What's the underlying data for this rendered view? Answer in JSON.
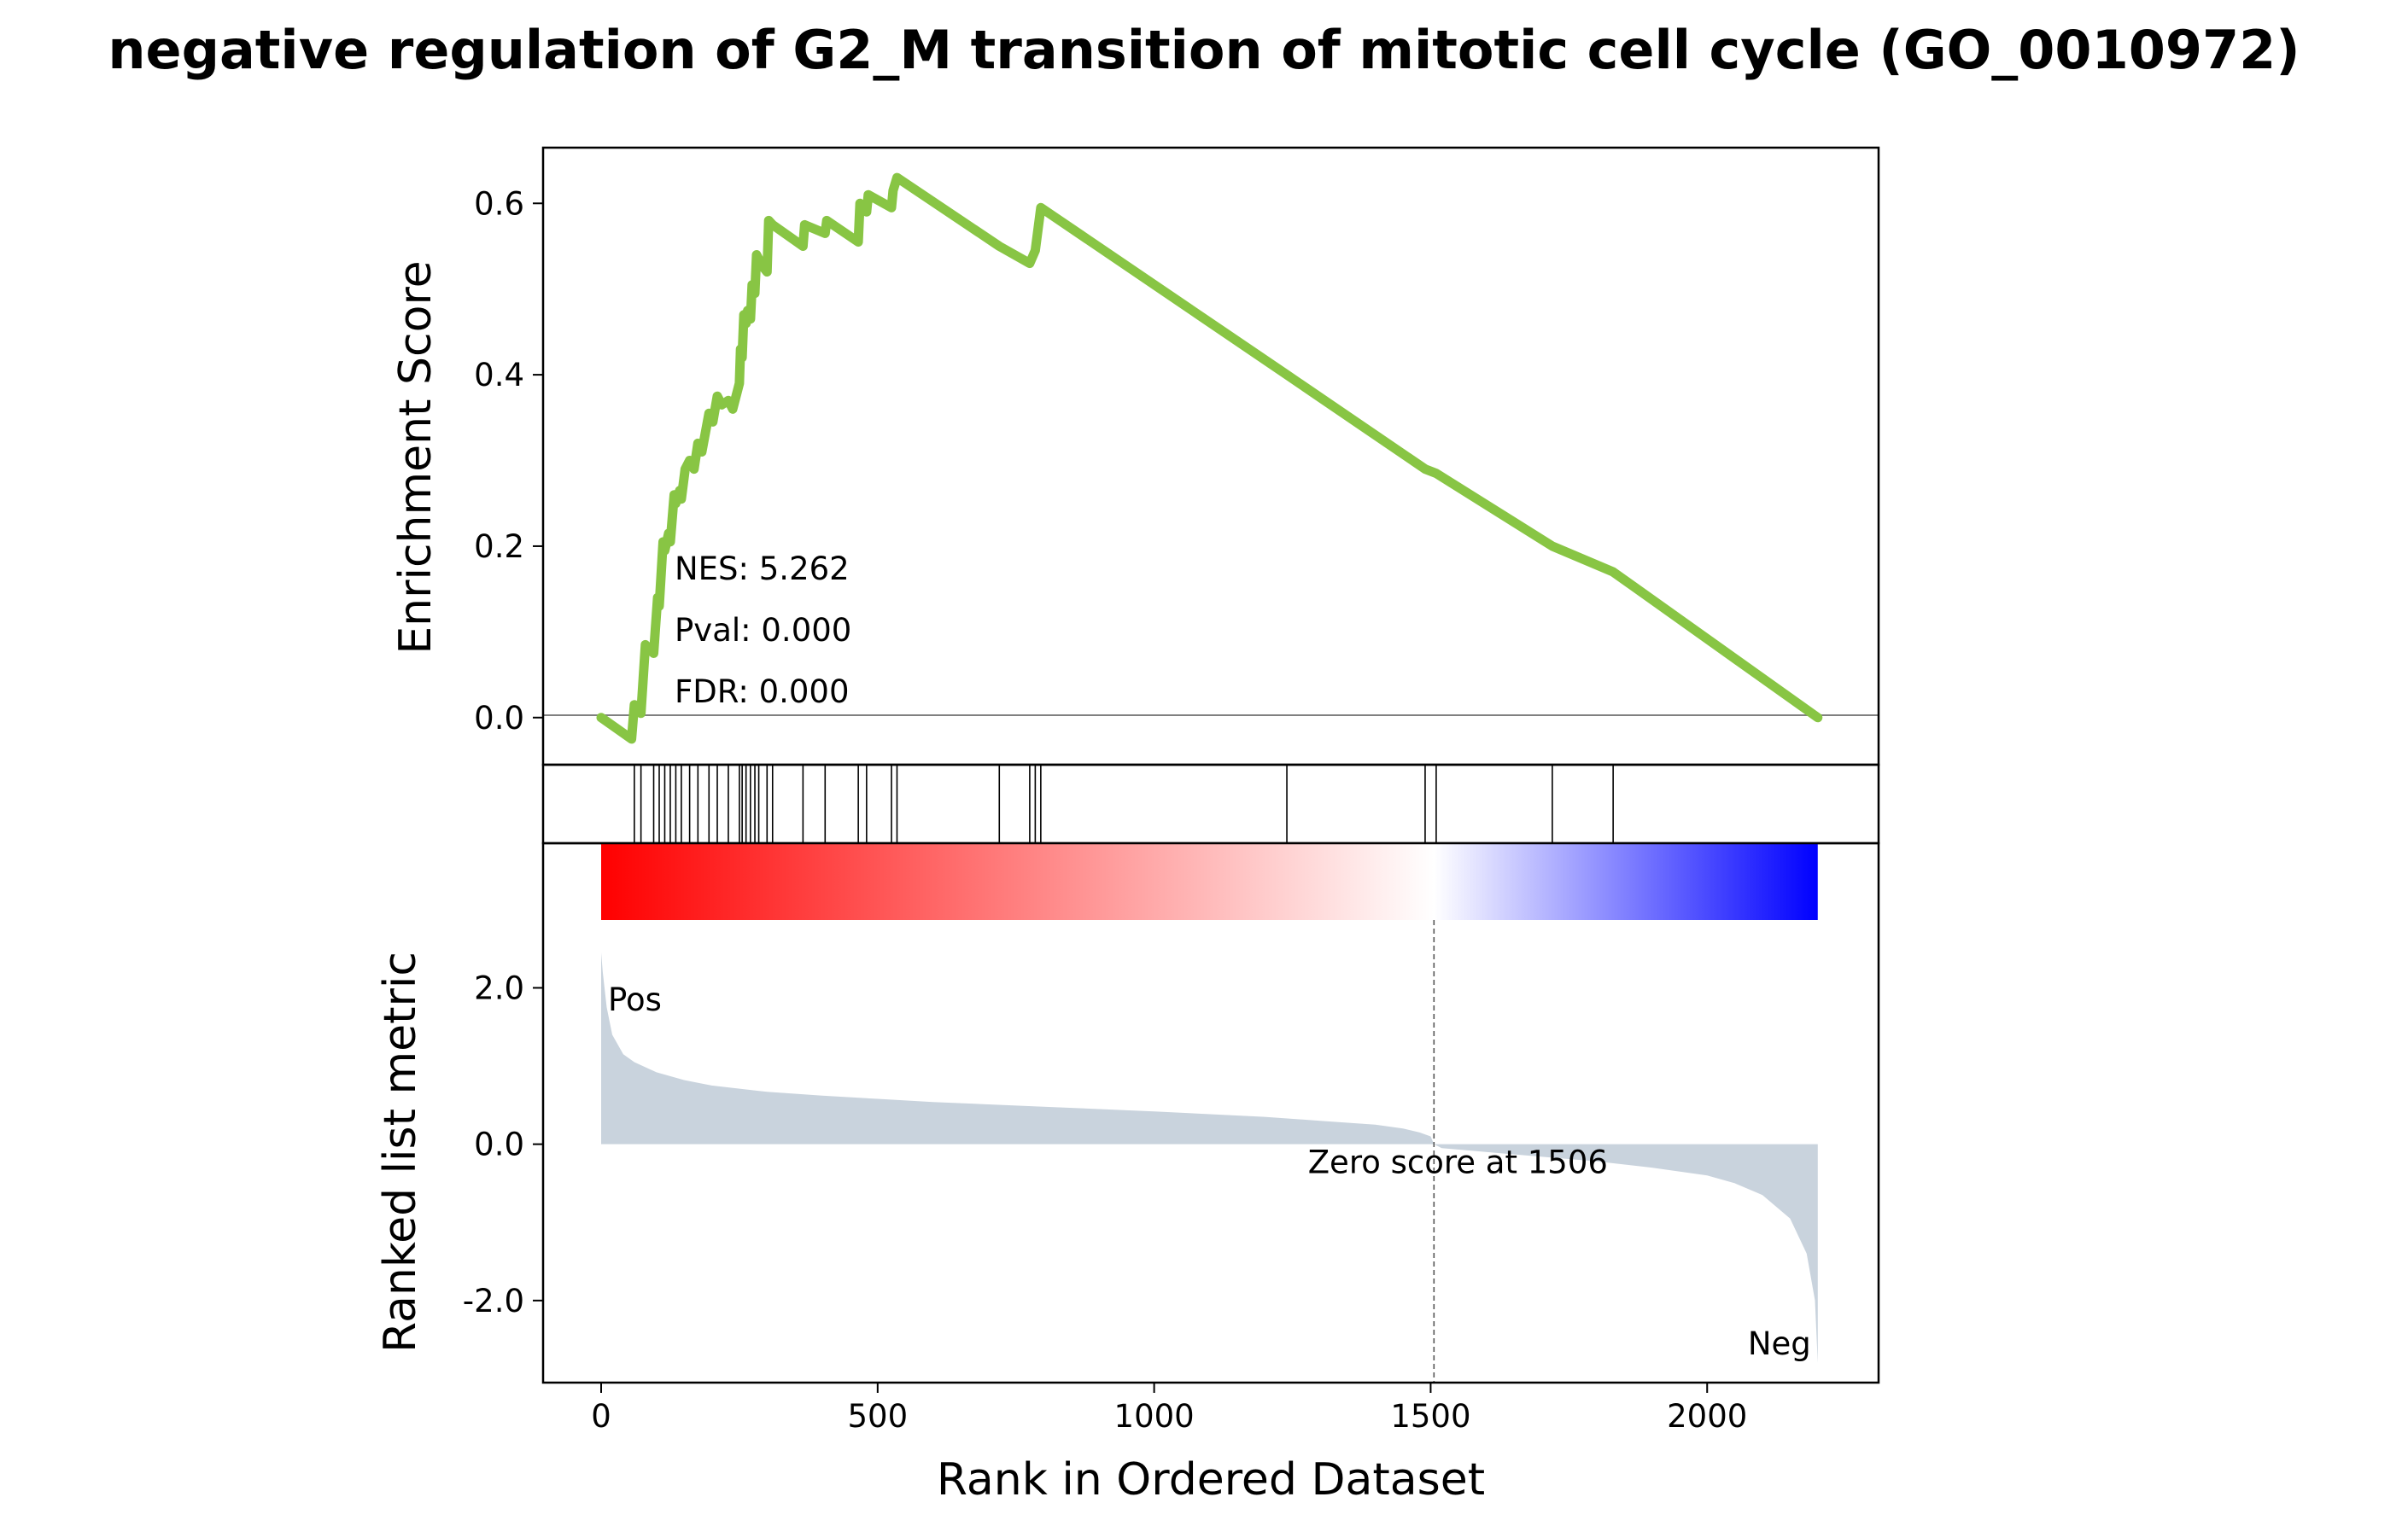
{
  "chart_data": {
    "type": "line",
    "title": "negative regulation of G2_M transition of mitotic cell cycle (GO_0010972)",
    "xlabel": "Rank in Ordered Dataset",
    "xlim": [
      -105,
      2310
    ],
    "x_ticks": [
      {
        "value": 0,
        "label": "0"
      },
      {
        "value": 500,
        "label": "500"
      },
      {
        "value": 1000,
        "label": "1000"
      },
      {
        "value": 1500,
        "label": "1500"
      },
      {
        "value": 2000,
        "label": "2000"
      }
    ],
    "enrichment": {
      "ylabel": "Enrichment Score",
      "ylim": [
        -0.055,
        0.665
      ],
      "y_ticks": [
        {
          "value": 0.0,
          "label": "0.0"
        },
        {
          "value": 0.2,
          "label": "0.2"
        },
        {
          "value": 0.4,
          "label": "0.4"
        },
        {
          "value": 0.6,
          "label": "0.6"
        }
      ],
      "line_color": "#88c544",
      "stats": {
        "nes": "NES: 5.262",
        "pval": "Pval: 0.000",
        "fdr": "FDR: 0.000"
      },
      "hits": [
        60,
        72,
        95,
        105,
        115,
        125,
        135,
        145,
        160,
        175,
        195,
        210,
        230,
        250,
        255,
        262,
        270,
        278,
        285,
        300,
        310,
        365,
        405,
        465,
        480,
        525,
        535,
        720,
        775,
        785,
        795,
        1240,
        1490,
        1510,
        1720,
        1830
      ],
      "x": [
        0,
        55,
        60,
        72,
        80,
        95,
        102,
        105,
        112,
        115,
        122,
        125,
        132,
        135,
        142,
        145,
        152,
        160,
        168,
        175,
        182,
        195,
        202,
        210,
        218,
        230,
        238,
        250,
        252,
        255,
        258,
        262,
        265,
        270,
        273,
        278,
        281,
        285,
        288,
        300,
        303,
        310,
        365,
        368,
        405,
        408,
        465,
        468,
        480,
        483,
        525,
        528,
        535,
        720,
        775,
        785,
        795,
        1240,
        1490,
        1510,
        1720,
        1830,
        2200
      ],
      "y": [
        0.0,
        -0.025,
        0.015,
        0.005,
        0.085,
        0.075,
        0.14,
        0.13,
        0.205,
        0.195,
        0.215,
        0.205,
        0.26,
        0.25,
        0.265,
        0.255,
        0.29,
        0.3,
        0.29,
        0.32,
        0.31,
        0.355,
        0.345,
        0.375,
        0.365,
        0.37,
        0.36,
        0.39,
        0.43,
        0.42,
        0.47,
        0.46,
        0.475,
        0.465,
        0.505,
        0.495,
        0.54,
        0.535,
        0.53,
        0.52,
        0.58,
        0.575,
        0.55,
        0.575,
        0.565,
        0.58,
        0.555,
        0.6,
        0.59,
        0.61,
        0.595,
        0.615,
        0.63,
        0.55,
        0.53,
        0.545,
        0.595,
        0.4,
        0.29,
        0.285,
        0.2,
        0.17,
        0.0
      ]
    },
    "ranked_metric": {
      "ylabel": "Ranked list metric",
      "ylim": [
        -3.05,
        3.85
      ],
      "y_ticks": [
        {
          "value": -2.0,
          "label": "-2.0"
        },
        {
          "value": 0.0,
          "label": "0.0"
        },
        {
          "value": 2.0,
          "label": "2.0"
        }
      ],
      "fill_color": "#c9d3dd",
      "x": [
        0,
        3,
        10,
        20,
        40,
        60,
        100,
        150,
        200,
        300,
        400,
        500,
        600,
        800,
        1000,
        1200,
        1300,
        1400,
        1450,
        1480,
        1500,
        1506,
        1520,
        1600,
        1800,
        1900,
        2000,
        2050,
        2100,
        2150,
        2180,
        2195,
        2200
      ],
      "y": [
        2.45,
        2.2,
        1.75,
        1.4,
        1.15,
        1.05,
        0.92,
        0.82,
        0.75,
        0.67,
        0.62,
        0.58,
        0.54,
        0.48,
        0.42,
        0.35,
        0.3,
        0.25,
        0.2,
        0.15,
        0.1,
        0.0,
        -0.05,
        -0.1,
        -0.22,
        -0.3,
        -0.4,
        -0.5,
        -0.65,
        -0.95,
        -1.4,
        -2.0,
        -2.8
      ],
      "zero_score_rank": 1506,
      "zero_score_label": "Zero score at 1506",
      "pos_label": "Pos",
      "neg_label": "Neg",
      "pos_color": "#ff0000",
      "neg_color": "#0000ff"
    }
  }
}
